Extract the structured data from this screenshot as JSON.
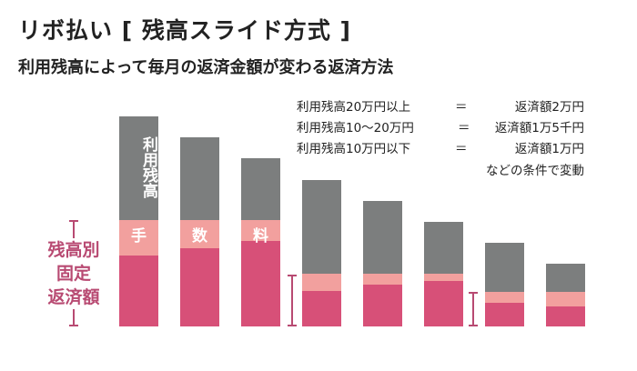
{
  "title": "リボ払い [ 残高スライド方式 ]",
  "subtitle": "利用残高によって毎月の返済金額が変わる返済方法",
  "conditions": [
    {
      "balance": "利用残高20万円以上",
      "eq": "＝",
      "payment": "返済額2万円"
    },
    {
      "balance": "利用残高10〜20万円",
      "eq": "＝",
      "payment": "返済額1万5千円"
    },
    {
      "balance": "利用残高10万円以下",
      "eq": "＝",
      "payment": "返済額1万円"
    }
  ],
  "conditions_note": "などの条件で変動",
  "bar_label_balance": "利用残高",
  "fee_chars": [
    "手",
    "数",
    "料"
  ],
  "side_label": [
    "残高別",
    "固定",
    "返済額"
  ],
  "colors": {
    "balance": "#7c7e7e",
    "fee": "#f2a09e",
    "payment": "#d75078",
    "bracket": "#b84a72"
  }
}
